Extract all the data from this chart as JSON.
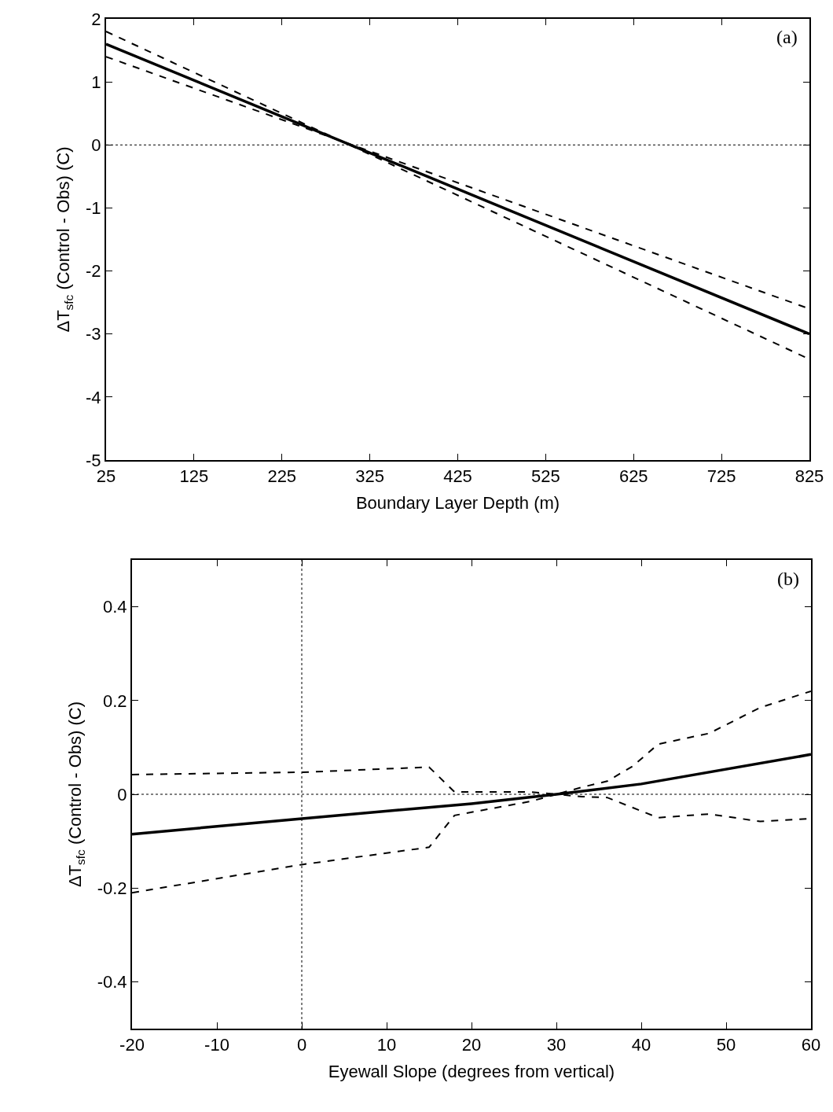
{
  "chart_data": [
    {
      "type": "line",
      "xlabel": "Boundary Layer Depth (m)",
      "ylabel": "ΔT$_{sfc}$ (Control - Obs) (C)",
      "annotations": [
        "(a)"
      ],
      "xlim": [
        25,
        825
      ],
      "ylim": [
        -5,
        2
      ],
      "xticks": [
        25,
        125,
        225,
        325,
        425,
        525,
        625,
        725,
        825
      ],
      "yticks": [
        -5,
        -4,
        -3,
        -2,
        -1,
        0,
        1,
        2
      ],
      "series": [
        {
          "color": "#000000",
          "line_style": "solid",
          "x": [
            25,
            825
          ],
          "values": [
            1.6,
            -3.0
          ]
        },
        {
          "color": "#000000",
          "line_style": "dashed",
          "x": [
            25,
            825
          ],
          "values": [
            1.8,
            -3.4
          ]
        },
        {
          "color": "#000000",
          "line_style": "dashed",
          "x": [
            25,
            825
          ],
          "values": [
            1.4,
            -2.6
          ]
        }
      ],
      "ref_lines": [
        {
          "axis": "y",
          "value": 0,
          "line_style": "dotted",
          "color": "#000000"
        }
      ]
    },
    {
      "type": "line",
      "xlabel": "Eyewall Slope (degrees from vertical)",
      "ylabel": "ΔT$_{sfc}$ (Control - Obs) (C)",
      "annotations": [
        "(b)"
      ],
      "xlim": [
        -20,
        60
      ],
      "ylim": [
        -0.5,
        0.5
      ],
      "xticks": [
        -20,
        -10,
        0,
        10,
        20,
        30,
        40,
        50,
        60
      ],
      "yticks": [
        -0.4,
        -0.2,
        0,
        0.2,
        0.4
      ],
      "series": [
        {
          "color": "#000000",
          "line_style": "solid",
          "x": [
            -20,
            0,
            20,
            30,
            40,
            60
          ],
          "values": [
            -0.085,
            -0.052,
            -0.02,
            0,
            0.022,
            0.085
          ]
        },
        {
          "color": "#000000",
          "line_style": "dashed",
          "x": [
            -20,
            0,
            15,
            18,
            27,
            30,
            33,
            36,
            39,
            42,
            48,
            54,
            60
          ],
          "values": [
            0.042,
            0.047,
            0.058,
            0.005,
            0.005,
            0,
            0.015,
            0.028,
            0.06,
            0.107,
            0.13,
            0.185,
            0.22
          ]
        },
        {
          "color": "#000000",
          "line_style": "dashed",
          "x": [
            -20,
            0,
            15,
            18,
            27,
            30,
            33,
            36,
            42,
            48,
            54,
            60
          ],
          "values": [
            -0.21,
            -0.15,
            -0.113,
            -0.045,
            -0.015,
            0,
            -0.005,
            -0.007,
            -0.05,
            -0.042,
            -0.058,
            -0.052
          ]
        }
      ],
      "ref_lines": [
        {
          "axis": "y",
          "value": 0,
          "line_style": "dotted",
          "color": "#000000"
        },
        {
          "axis": "x",
          "value": 0,
          "line_style": "dotted",
          "color": "#000000"
        }
      ]
    }
  ]
}
